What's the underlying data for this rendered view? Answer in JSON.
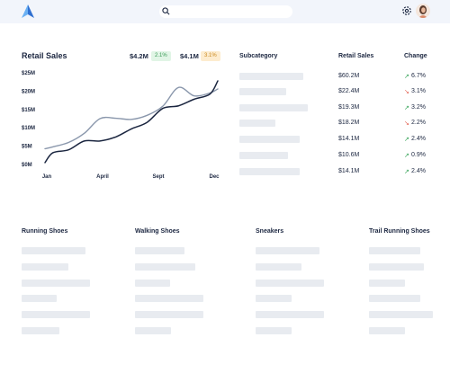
{
  "header": {
    "logo_icon": "logo-triangle-icon",
    "search_placeholder": "",
    "accent": "#3d8fe6"
  },
  "retail_chart": {
    "title": "Retail Sales",
    "metrics": [
      {
        "value": "$4.2M",
        "change": "2.1%",
        "color": "green"
      },
      {
        "value": "$4.1M",
        "change": "3.1%",
        "color": "orange"
      }
    ]
  },
  "chart_data": {
    "type": "line",
    "title": "Retail Sales",
    "yticks": [
      "$25M",
      "$20M",
      "$15M",
      "$10M",
      "$5M",
      "$0M"
    ],
    "xticks": [
      "Jan",
      "April",
      "Sept",
      "Dec"
    ],
    "ylim": [
      0,
      25
    ],
    "xlim": [
      0,
      11
    ],
    "series": [
      {
        "color": "#1b2640",
        "x": [
          0,
          0.5,
          1.5,
          2.5,
          3.5,
          4.5,
          5.5,
          6.5,
          7.5,
          8.5,
          9.5,
          10.5,
          11
        ],
        "y": [
          0.5,
          3.2,
          4.0,
          6.4,
          6.4,
          7.5,
          9.7,
          11.5,
          15.3,
          16.0,
          17.8,
          19.2,
          22.8
        ]
      },
      {
        "color": "#8a97ac",
        "x": [
          0,
          0.5,
          1.5,
          2.5,
          3.5,
          4.5,
          5.5,
          6.5,
          7.5,
          8.5,
          9.5,
          10.5,
          11
        ],
        "y": [
          4.3,
          4.8,
          6.0,
          8.5,
          12.5,
          12.6,
          12.3,
          13.4,
          15.9,
          21.0,
          18.7,
          19.5,
          20.6
        ]
      }
    ],
    "grid": false,
    "legend": "none"
  },
  "table": {
    "headers": {
      "subcategory": "Subcategory",
      "retail": "Retail Sales",
      "change": "Change"
    },
    "rows": [
      {
        "sales": "$60.2M",
        "change": "6.7%",
        "dir": "up",
        "bar": 71
      },
      {
        "sales": "$22.4M",
        "change": "3.1%",
        "dir": "down",
        "bar": 52
      },
      {
        "sales": "$19.3M",
        "change": "3.2%",
        "dir": "up",
        "bar": 76
      },
      {
        "sales": "$18.2M",
        "change": "2.2%",
        "dir": "down",
        "bar": 40
      },
      {
        "sales": "$14.1M",
        "change": "2.4%",
        "dir": "up",
        "bar": 67
      },
      {
        "sales": "$10.6M",
        "change": "0.9%",
        "dir": "up",
        "bar": 54
      },
      {
        "sales": "$14.1M",
        "change": "2.4%",
        "dir": "up",
        "bar": 67
      }
    ],
    "colors": {
      "up": "#3aa55c",
      "down": "#e35d4c"
    }
  },
  "sections": [
    {
      "title": "Running Shoes"
    },
    {
      "title": "Walking Shoes"
    },
    {
      "title": "Sneakers"
    },
    {
      "title": "Trail Running Shoes"
    }
  ]
}
